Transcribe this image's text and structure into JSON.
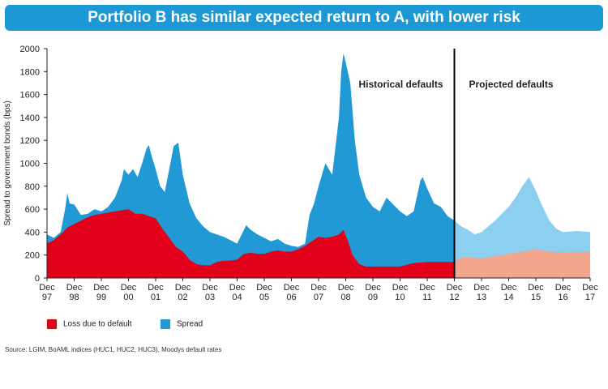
{
  "colors": {
    "title_bg": "#1c98d4",
    "loss": "#e2001a",
    "spread": "#2199d4",
    "loss_projected": "#f2a68e",
    "spread_projected": "#8ccfee"
  },
  "chart_data": {
    "type": "area",
    "title": "Portfolio B has similar expected return to A, with lower risk",
    "ylabel": "Spread to government bonds (bps)",
    "ylim": [
      0,
      2000
    ],
    "yticks": [
      0,
      200,
      400,
      600,
      800,
      1000,
      1200,
      1400,
      1600,
      1800,
      2000
    ],
    "grid": false,
    "legend_position": "bottom-left",
    "x_ticks": [
      {
        "month": "Dec",
        "year": "97"
      },
      {
        "month": "Dec",
        "year": "98"
      },
      {
        "month": "Dec",
        "year": "99"
      },
      {
        "month": "Dec",
        "year": "00"
      },
      {
        "month": "Dec",
        "year": "01"
      },
      {
        "month": "Dec",
        "year": "02"
      },
      {
        "month": "Dec",
        "year": "03"
      },
      {
        "month": "Dec",
        "year": "04"
      },
      {
        "month": "Dec",
        "year": "05"
      },
      {
        "month": "Dec",
        "year": "06"
      },
      {
        "month": "Dec",
        "year": "07"
      },
      {
        "month": "Dec",
        "year": "08"
      },
      {
        "month": "Dec",
        "year": "09"
      },
      {
        "month": "Dec",
        "year": "10"
      },
      {
        "month": "Dec",
        "year": "11"
      },
      {
        "month": "Dec",
        "year": "12"
      },
      {
        "month": "Dec",
        "year": "13"
      },
      {
        "month": "Dec",
        "year": "14"
      },
      {
        "month": "Dec",
        "year": "15"
      },
      {
        "month": "Dec",
        "year": "16"
      },
      {
        "month": "Dec",
        "year": "17"
      }
    ],
    "x_start": "1997-12",
    "x_end": "2017-12",
    "divider_at": "2012-12",
    "annotations": [
      "Historical defaults",
      "Projected defaults"
    ],
    "series": [
      {
        "name": "Spread",
        "color": "#2199d4",
        "projected_color": "#8ccfee",
        "points": [
          [
            "1997-12",
            380
          ],
          [
            "1998-03",
            350
          ],
          [
            "1998-06",
            400
          ],
          [
            "1998-08",
            600
          ],
          [
            "1998-09",
            740
          ],
          [
            "1998-10",
            650
          ],
          [
            "1998-12",
            640
          ],
          [
            "1999-03",
            550
          ],
          [
            "1999-06",
            560
          ],
          [
            "1999-09",
            600
          ],
          [
            "1999-12",
            580
          ],
          [
            "2000-03",
            620
          ],
          [
            "2000-06",
            700
          ],
          [
            "2000-09",
            850
          ],
          [
            "2000-10",
            950
          ],
          [
            "2000-12",
            900
          ],
          [
            "2001-02",
            950
          ],
          [
            "2001-04",
            880
          ],
          [
            "2001-06",
            1000
          ],
          [
            "2001-08",
            1130
          ],
          [
            "2001-09",
            1160
          ],
          [
            "2001-10",
            1080
          ],
          [
            "2001-12",
            950
          ],
          [
            "2002-02",
            800
          ],
          [
            "2002-04",
            750
          ],
          [
            "2002-06",
            950
          ],
          [
            "2002-08",
            1150
          ],
          [
            "2002-10",
            1180
          ],
          [
            "2002-12",
            900
          ],
          [
            "2003-03",
            650
          ],
          [
            "2003-06",
            520
          ],
          [
            "2003-09",
            450
          ],
          [
            "2003-12",
            400
          ],
          [
            "2004-03",
            380
          ],
          [
            "2004-06",
            360
          ],
          [
            "2004-09",
            330
          ],
          [
            "2004-12",
            300
          ],
          [
            "2005-02",
            380
          ],
          [
            "2005-04",
            460
          ],
          [
            "2005-06",
            420
          ],
          [
            "2005-09",
            380
          ],
          [
            "2005-12",
            350
          ],
          [
            "2006-03",
            320
          ],
          [
            "2006-06",
            340
          ],
          [
            "2006-09",
            300
          ],
          [
            "2006-12",
            280
          ],
          [
            "2007-03",
            270
          ],
          [
            "2007-06",
            300
          ],
          [
            "2007-08",
            550
          ],
          [
            "2007-10",
            650
          ],
          [
            "2007-12",
            800
          ],
          [
            "2008-03",
            1000
          ],
          [
            "2008-06",
            900
          ],
          [
            "2008-09",
            1400
          ],
          [
            "2008-10",
            1800
          ],
          [
            "2008-11",
            1960
          ],
          [
            "2008-12",
            1880
          ],
          [
            "2009-02",
            1700
          ],
          [
            "2009-04",
            1200
          ],
          [
            "2009-06",
            900
          ],
          [
            "2009-09",
            700
          ],
          [
            "2009-12",
            620
          ],
          [
            "2010-03",
            580
          ],
          [
            "2010-06",
            700
          ],
          [
            "2010-09",
            640
          ],
          [
            "2010-12",
            580
          ],
          [
            "2011-03",
            540
          ],
          [
            "2011-06",
            580
          ],
          [
            "2011-09",
            850
          ],
          [
            "2011-10",
            880
          ],
          [
            "2011-12",
            780
          ],
          [
            "2012-03",
            650
          ],
          [
            "2012-06",
            620
          ],
          [
            "2012-09",
            540
          ],
          [
            "2012-12",
            500
          ]
        ],
        "projected_points": [
          [
            "2012-12",
            500
          ],
          [
            "2013-03",
            450
          ],
          [
            "2013-06",
            420
          ],
          [
            "2013-09",
            380
          ],
          [
            "2013-12",
            400
          ],
          [
            "2014-03",
            450
          ],
          [
            "2014-06",
            500
          ],
          [
            "2014-09",
            560
          ],
          [
            "2014-12",
            620
          ],
          [
            "2015-03",
            700
          ],
          [
            "2015-06",
            800
          ],
          [
            "2015-09",
            880
          ],
          [
            "2015-12",
            760
          ],
          [
            "2016-03",
            620
          ],
          [
            "2016-06",
            500
          ],
          [
            "2016-09",
            430
          ],
          [
            "2016-12",
            400
          ],
          [
            "2017-06",
            410
          ],
          [
            "2017-12",
            400
          ]
        ]
      },
      {
        "name": "Loss due to default",
        "color": "#e2001a",
        "projected_color": "#f2a68e",
        "points": [
          [
            "1997-12",
            300
          ],
          [
            "1998-03",
            330
          ],
          [
            "1998-06",
            380
          ],
          [
            "1998-09",
            440
          ],
          [
            "1998-12",
            470
          ],
          [
            "1999-03",
            500
          ],
          [
            "1999-06",
            530
          ],
          [
            "1999-09",
            550
          ],
          [
            "1999-12",
            560
          ],
          [
            "2000-03",
            570
          ],
          [
            "2000-06",
            580
          ],
          [
            "2000-09",
            590
          ],
          [
            "2000-12",
            600
          ],
          [
            "2001-03",
            560
          ],
          [
            "2001-06",
            560
          ],
          [
            "2001-09",
            540
          ],
          [
            "2001-12",
            520
          ],
          [
            "2002-03",
            430
          ],
          [
            "2002-06",
            350
          ],
          [
            "2002-09",
            270
          ],
          [
            "2002-12",
            230
          ],
          [
            "2003-03",
            160
          ],
          [
            "2003-06",
            120
          ],
          [
            "2003-09",
            110
          ],
          [
            "2003-12",
            110
          ],
          [
            "2004-03",
            140
          ],
          [
            "2004-06",
            150
          ],
          [
            "2004-09",
            150
          ],
          [
            "2004-12",
            160
          ],
          [
            "2005-03",
            210
          ],
          [
            "2005-06",
            220
          ],
          [
            "2005-09",
            210
          ],
          [
            "2005-12",
            210
          ],
          [
            "2006-03",
            230
          ],
          [
            "2006-06",
            240
          ],
          [
            "2006-09",
            230
          ],
          [
            "2006-12",
            230
          ],
          [
            "2007-03",
            250
          ],
          [
            "2007-06",
            280
          ],
          [
            "2007-09",
            320
          ],
          [
            "2007-12",
            360
          ],
          [
            "2008-03",
            350
          ],
          [
            "2008-06",
            360
          ],
          [
            "2008-09",
            380
          ],
          [
            "2008-11",
            420
          ],
          [
            "2009-01",
            320
          ],
          [
            "2009-03",
            200
          ],
          [
            "2009-06",
            120
          ],
          [
            "2009-09",
            100
          ],
          [
            "2009-12",
            100
          ],
          [
            "2010-06",
            100
          ],
          [
            "2010-12",
            100
          ],
          [
            "2011-06",
            130
          ],
          [
            "2011-12",
            140
          ],
          [
            "2012-06",
            140
          ],
          [
            "2012-12",
            140
          ]
        ],
        "projected_points": [
          [
            "2012-12",
            140
          ],
          [
            "2013-03",
            175
          ],
          [
            "2013-06",
            180
          ],
          [
            "2013-12",
            170
          ],
          [
            "2014-06",
            190
          ],
          [
            "2014-12",
            210
          ],
          [
            "2015-06",
            230
          ],
          [
            "2015-12",
            250
          ],
          [
            "2016-06",
            230
          ],
          [
            "2016-12",
            225
          ],
          [
            "2017-12",
            230
          ]
        ]
      }
    ]
  },
  "legend": {
    "loss_label": "Loss due to default",
    "spread_label": "Spread"
  },
  "source_text": "Source:  LGIM, BoAML indices (HUC1, HUC2, HUC3), Moodys default rates"
}
